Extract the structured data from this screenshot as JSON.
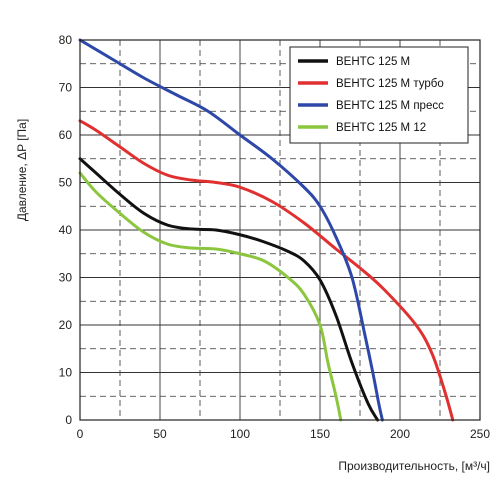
{
  "chart_data": {
    "type": "line",
    "xlabel": "Производительность, [м³/ч]",
    "ylabel": "Давление, ΔP [Па]",
    "xlim": [
      0,
      250
    ],
    "ylim": [
      0,
      80
    ],
    "x_ticks": [
      0,
      50,
      100,
      150,
      200,
      250
    ],
    "y_ticks": [
      0,
      10,
      20,
      30,
      40,
      50,
      60,
      70,
      80
    ],
    "x_tick_labels": [
      "0",
      "50",
      "100",
      "150",
      "200",
      "250"
    ],
    "y_tick_labels": [
      "0",
      "10",
      "20",
      "30",
      "40",
      "50",
      "60",
      "70",
      "80"
    ],
    "grid": true,
    "legend_position": "top-right",
    "series": [
      {
        "name": "ВЕНТС 125 М",
        "color": "#111111",
        "points": [
          [
            0,
            55
          ],
          [
            10,
            52
          ],
          [
            25,
            47.5
          ],
          [
            40,
            43.5
          ],
          [
            55,
            41
          ],
          [
            70,
            40.2
          ],
          [
            85,
            40
          ],
          [
            100,
            39
          ],
          [
            115,
            37.5
          ],
          [
            130,
            35.5
          ],
          [
            140,
            33.5
          ],
          [
            150,
            29.5
          ],
          [
            160,
            22
          ],
          [
            170,
            12
          ],
          [
            180,
            3.5
          ],
          [
            186,
            0
          ]
        ]
      },
      {
        "name": "ВЕНТС 125 М турбо",
        "color": "#e03030",
        "points": [
          [
            0,
            63
          ],
          [
            10,
            61
          ],
          [
            25,
            57.5
          ],
          [
            40,
            54
          ],
          [
            55,
            51.5
          ],
          [
            70,
            50.5
          ],
          [
            85,
            50
          ],
          [
            100,
            49
          ],
          [
            120,
            46
          ],
          [
            140,
            41.5
          ],
          [
            160,
            36
          ],
          [
            175,
            32
          ],
          [
            190,
            27.5
          ],
          [
            210,
            20
          ],
          [
            220,
            14
          ],
          [
            228,
            6
          ],
          [
            233,
            0
          ]
        ]
      },
      {
        "name": "ВЕНТС 125 М пресс",
        "color": "#2d48a8",
        "points": [
          [
            0,
            80
          ],
          [
            20,
            76
          ],
          [
            40,
            72
          ],
          [
            60,
            68.5
          ],
          [
            80,
            65
          ],
          [
            100,
            60
          ],
          [
            120,
            55
          ],
          [
            140,
            49
          ],
          [
            150,
            45
          ],
          [
            160,
            38.5
          ],
          [
            170,
            30
          ],
          [
            178,
            18
          ],
          [
            183,
            10
          ],
          [
            187,
            3
          ],
          [
            189,
            0
          ]
        ]
      },
      {
        "name": "ВЕНТС 125 М  12",
        "color": "#8cc63f",
        "points": [
          [
            0,
            52
          ],
          [
            10,
            48
          ],
          [
            25,
            43.5
          ],
          [
            40,
            39.5
          ],
          [
            55,
            37
          ],
          [
            70,
            36.2
          ],
          [
            85,
            36
          ],
          [
            100,
            35
          ],
          [
            115,
            33.5
          ],
          [
            130,
            30
          ],
          [
            140,
            26.5
          ],
          [
            150,
            20
          ],
          [
            155,
            12
          ],
          [
            160,
            5
          ],
          [
            163,
            0
          ]
        ]
      }
    ]
  }
}
